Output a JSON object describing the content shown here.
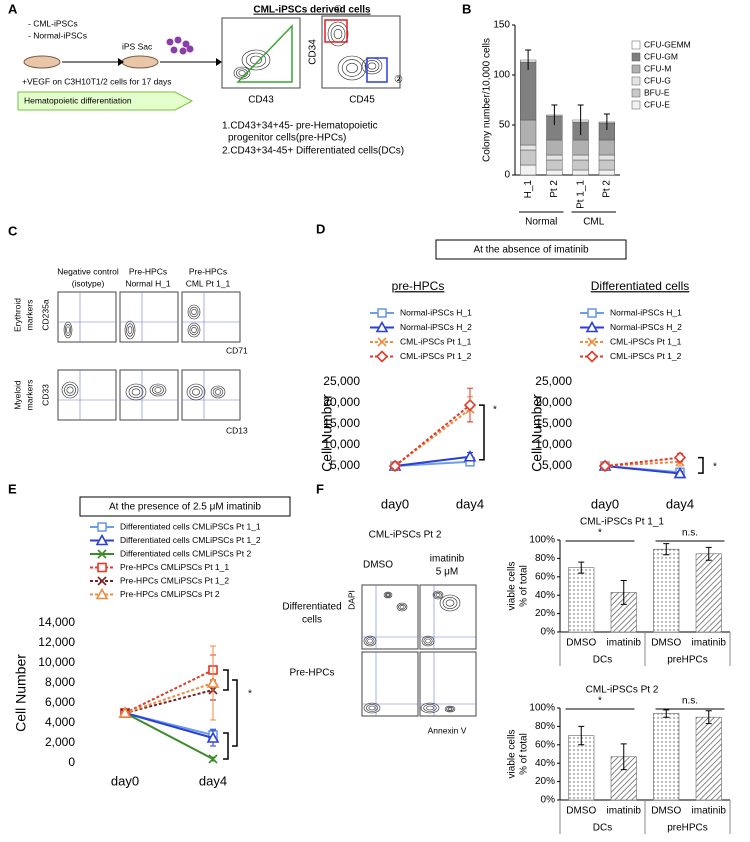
{
  "panel_labels": [
    "A",
    "B",
    "C",
    "D",
    "E",
    "F"
  ],
  "panel_a": {
    "cells": [
      "- CML-iPSCs",
      "- Normal-iPSCs"
    ],
    "sac": "iPS Sac",
    "culture": "+VEGF on C3H10T1/2 cells for 17 days",
    "arrow": "Hematopoietic differentiation",
    "title": "CML-iPSCs derived cells",
    "x1": "CD43",
    "x2": "CD45",
    "y2": "CD34",
    "gate1": "①",
    "gate2": "②",
    "legend_red": [
      "1.CD43+34+45- pre-Hematopoietic",
      "progenitor cells(pre-HPCs)"
    ],
    "legend_blue": "2.CD43+34-45+ Differentiated cells(DCs)"
  },
  "panel_c": {
    "columns": [
      [
        "Negative control",
        "(isotype)"
      ],
      [
        "Pre-HPCs",
        "Normal H_1"
      ],
      [
        "Pre-HPCs",
        "CML Pt 1_1"
      ]
    ],
    "rows": [
      [
        "Erythroid",
        "markers"
      ],
      [
        "Myeloid",
        "markers"
      ]
    ],
    "row_y": [
      "CD235a",
      "CD33"
    ],
    "row_x": [
      "CD71",
      "CD13"
    ]
  },
  "panel_d": {
    "header": "At the absence of imatinib"
  },
  "panel_e": {
    "header": "At the presence of 2.5 μM imatinib"
  },
  "panel_f": {
    "sample": "CML-iPSCs Pt 2",
    "conditions": [
      [
        "DMSO"
      ],
      [
        "imatinib",
        "5 μM"
      ]
    ],
    "rows": [
      [
        "Differentiated",
        "cells"
      ],
      [
        "Pre-HPCs"
      ]
    ],
    "ylabel": "DAPI",
    "xlabel": "Annexin V"
  },
  "chart_data": [
    {
      "type": "stacked",
      "ylabel": "Colony number/10,000 cells",
      "categories": [
        "H_1",
        "Pt 2",
        "Pt 1_1",
        "Pt 2"
      ],
      "groups": [
        "Normal",
        "CML"
      ],
      "ylim": [
        0,
        150
      ],
      "yticks": [
        0,
        50,
        100,
        150
      ],
      "series": [
        {
          "name": "CFU-GEMM",
          "color": "#ffffff",
          "values": [
            2,
            1,
            2,
            1
          ]
        },
        {
          "name": "CFU-GM",
          "color": "#808080",
          "values": [
            58,
            24,
            18,
            17
          ]
        },
        {
          "name": "CFU-M",
          "color": "#b0b0b0",
          "values": [
            25,
            15,
            15,
            15
          ]
        },
        {
          "name": "CFU-G",
          "color": "#e4e4e4",
          "values": [
            5,
            5,
            5,
            5
          ]
        },
        {
          "name": "BFU-E",
          "color": "#c8c8c8",
          "values": [
            15,
            10,
            10,
            10
          ]
        },
        {
          "name": "CFU-E",
          "color": "#f2f2f2",
          "values": [
            10,
            5,
            5,
            5
          ]
        }
      ],
      "errors": [
        10,
        10,
        15,
        8
      ]
    },
    {
      "type": "line",
      "title": "pre-HPCs",
      "ylabel": "Cell Number",
      "categories": [
        "day0",
        "day4"
      ],
      "ylim": [
        0,
        25000
      ],
      "yticks": [
        {
          "value": 5000,
          "label": "5,000"
        },
        {
          "value": 10000,
          "label": "10,000"
        },
        {
          "value": 15000,
          "label": "15,000"
        },
        {
          "value": 20000,
          "label": "20,000"
        },
        {
          "value": 25000,
          "label": "25,000"
        }
      ],
      "series": [
        {
          "name": "Normal-iPSCs H_1",
          "color": "#6f9be8",
          "marker": "square",
          "dashed": false,
          "values": [
            5000,
            6000
          ],
          "errors": [
            null,
            800
          ]
        },
        {
          "name": "Normal-iPSCs H_2",
          "color": "#2a3fd6",
          "marker": "triangle",
          "dashed": false,
          "values": [
            5000,
            7200
          ],
          "errors": [
            null,
            1000
          ]
        },
        {
          "name": "CML-iPSCs Pt 1_1",
          "color": "#f08a3c",
          "marker": "x",
          "dashed": true,
          "values": [
            5000,
            18500
          ],
          "errors": [
            null,
            3000
          ]
        },
        {
          "name": "CML-iPSCs Pt 1_2",
          "color": "#e03a2a",
          "marker": "diamond",
          "dashed": true,
          "values": [
            5000,
            19500
          ],
          "errors": [
            null,
            4000
          ]
        }
      ],
      "annotation": "*"
    },
    {
      "type": "line",
      "title": "Differentiated cells",
      "ylabel": "Cell Number",
      "categories": [
        "day0",
        "day4"
      ],
      "ylim": [
        0,
        25000
      ],
      "yticks": [
        {
          "value": 5000,
          "label": "5,000"
        },
        {
          "value": 10000,
          "label": "10,000"
        },
        {
          "value": 15000,
          "label": "15,000"
        },
        {
          "value": 20000,
          "label": "20,000"
        },
        {
          "value": 25000,
          "label": "25,000"
        }
      ],
      "series": [
        {
          "name": "Normal-iPSCs H_1",
          "color": "#6f9be8",
          "marker": "square",
          "dashed": false,
          "values": [
            5000,
            3500
          ],
          "errors": [
            null,
            500
          ]
        },
        {
          "name": "Normal-iPSCs H_2",
          "color": "#2a3fd6",
          "marker": "triangle",
          "dashed": false,
          "values": [
            5000,
            3200
          ],
          "errors": [
            null,
            500
          ]
        },
        {
          "name": "CML-iPSCs Pt 1_1",
          "color": "#f08a3c",
          "marker": "x",
          "dashed": true,
          "values": [
            5000,
            6000
          ],
          "errors": [
            null,
            1000
          ]
        },
        {
          "name": "CML-iPSCs Pt 1_2",
          "color": "#e03a2a",
          "marker": "diamond",
          "dashed": true,
          "values": [
            5000,
            7000
          ],
          "errors": [
            null,
            1000
          ]
        }
      ],
      "annotation": "*"
    },
    {
      "type": "line",
      "ylabel": "Cell Number",
      "categories": [
        "day0",
        "day4"
      ],
      "ylim": [
        0,
        14000
      ],
      "yticks": [
        0,
        {
          "value": 2000,
          "label": "2,000"
        },
        {
          "value": 4000,
          "label": "4,000"
        },
        {
          "value": 6000,
          "label": "6,000"
        },
        {
          "value": 8000,
          "label": "8,000"
        },
        {
          "value": 10000,
          "label": "10,000"
        },
        {
          "value": 12000,
          "label": "12,000"
        },
        {
          "value": 14000,
          "label": "14,000"
        }
      ],
      "series": [
        {
          "name": "Differentiated cells CMLiPSCs Pt 1_1",
          "color": "#6f9be8",
          "marker": "square",
          "dashed": false,
          "values": [
            5000,
            2800
          ],
          "errors": [
            null,
            600
          ]
        },
        {
          "name": "Differentiated cells CMLiPSCs Pt 1_2",
          "color": "#2a3fd6",
          "marker": "triangle",
          "dashed": false,
          "values": [
            5000,
            2500
          ],
          "errors": [
            null,
            800
          ]
        },
        {
          "name": "Differentiated cells CMLiPSCs Pt 2",
          "color": "#3c8a2a",
          "marker": "x",
          "dashed": false,
          "values": [
            5000,
            400
          ],
          "errors": [
            null,
            200
          ]
        },
        {
          "name": "Pre-HPCs CMLiPSCs Pt 1_1",
          "color": "#e03a2a",
          "marker": "square",
          "dashed": true,
          "values": [
            5000,
            9300
          ],
          "errors": [
            null,
            1500
          ]
        },
        {
          "name": "Pre-HPCs CMLiPSCs Pt 1_2",
          "color": "#7a2020",
          "marker": "x",
          "dashed": true,
          "values": [
            5000,
            7300
          ],
          "errors": [
            null,
            1000
          ]
        },
        {
          "name": "Pre-HPCs CMLiPSCs Pt 2",
          "color": "#f08a3c",
          "marker": "triangle",
          "dashed": true,
          "values": [
            5000,
            8000
          ],
          "errors": [
            null,
            3700
          ]
        }
      ],
      "annotation": "*"
    },
    {
      "type": "bar",
      "title": "CML-iPSCs Pt 1_1",
      "ylabel": [
        "viable cells",
        "% of total"
      ],
      "categories": [
        "DMSO",
        "imatinib",
        "DMSO",
        "imatinib"
      ],
      "groups": [
        "DCs",
        "preHPCs"
      ],
      "values": [
        70,
        43,
        90,
        85
      ],
      "errors": [
        6,
        13,
        6,
        7
      ],
      "ylim": [
        0,
        100
      ],
      "yticks": [
        {
          "value": 0,
          "label": "0%"
        },
        {
          "value": 20,
          "label": "20%"
        },
        {
          "value": 40,
          "label": "40%"
        },
        {
          "value": 60,
          "label": "60%"
        },
        {
          "value": 80,
          "label": "80%"
        },
        {
          "value": 100,
          "label": "100%"
        }
      ],
      "annotations": [
        "*",
        "n.s."
      ]
    },
    {
      "type": "bar",
      "title": "CML-iPSCs Pt 2",
      "ylabel": [
        "viable cells",
        "% of total"
      ],
      "categories": [
        "DMSO",
        "imatinib",
        "DMSO",
        "imatinib"
      ],
      "groups": [
        "DCs",
        "preHPCs"
      ],
      "values": [
        70,
        47,
        94,
        90
      ],
      "errors": [
        10,
        14,
        4,
        7
      ],
      "ylim": [
        0,
        100
      ],
      "yticks": [
        {
          "value": 0,
          "label": "0%"
        },
        {
          "value": 20,
          "label": "20%"
        },
        {
          "value": 40,
          "label": "40%"
        },
        {
          "value": 60,
          "label": "60%"
        },
        {
          "value": 80,
          "label": "80%"
        },
        {
          "value": 100,
          "label": "100%"
        }
      ],
      "annotations": [
        "*",
        "n.s."
      ]
    }
  ]
}
